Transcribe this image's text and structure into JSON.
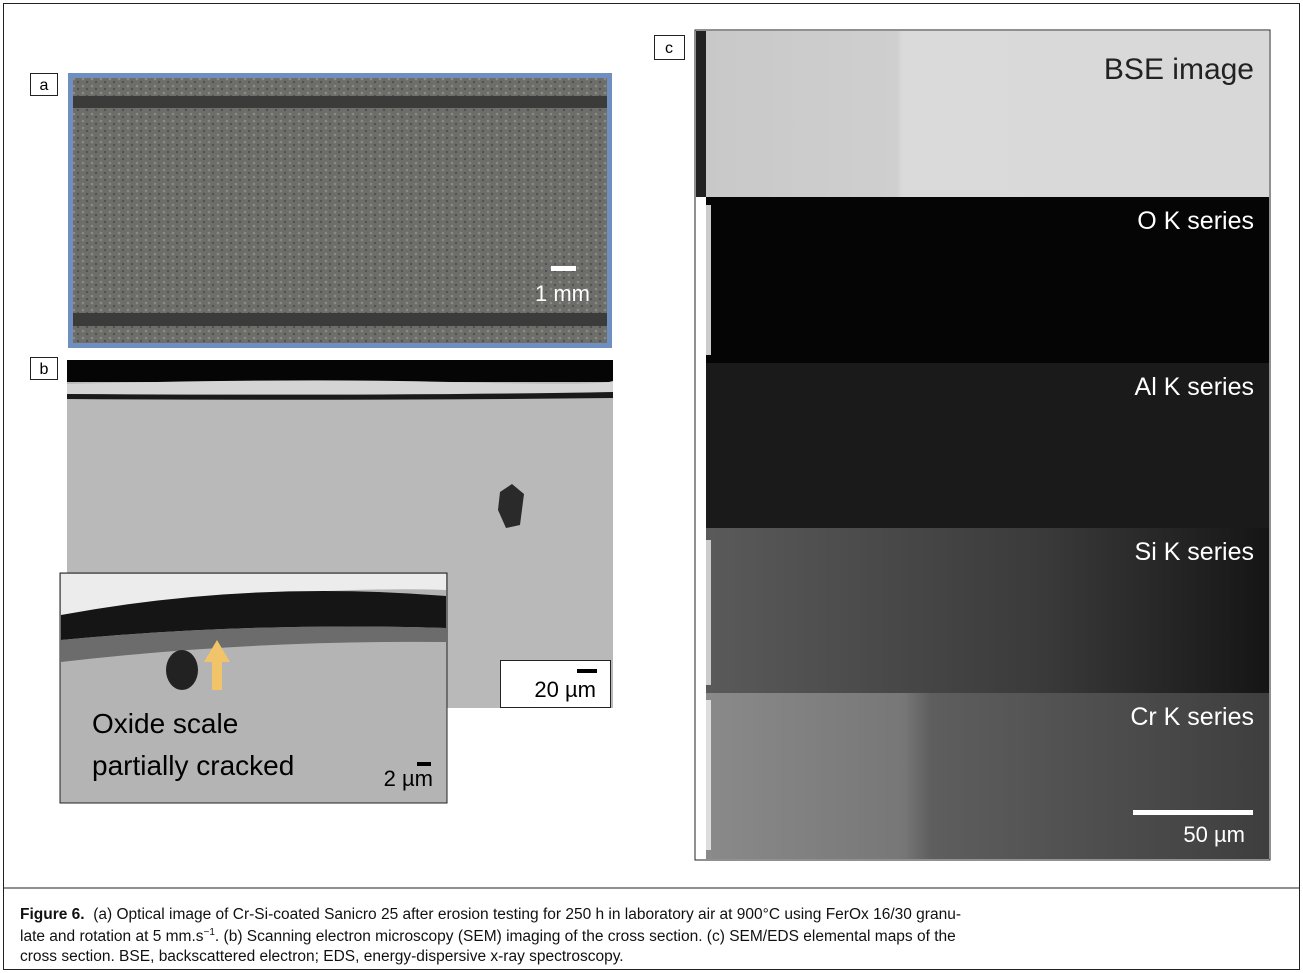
{
  "panels": {
    "a": {
      "label": "a",
      "scale_bar": "1 mm"
    },
    "b": {
      "label": "b",
      "scale_bar": "20 µm",
      "inset": {
        "annotation_lines": [
          "Oxide scale",
          "partially cracked"
        ],
        "scale_bar": "2 µm"
      }
    },
    "c": {
      "label": "c",
      "maps": [
        "BSE image",
        "O K series",
        "Al K series",
        "Si K series",
        "Cr K series"
      ],
      "scale_bar": "50 µm"
    }
  },
  "caption": {
    "label": "Figure 6.",
    "line1": "(a) Optical image of Cr-Si-coated Sanicro 25 after erosion testing for 250 h in laboratory air at 900°C using FerOx 16/30 granu-",
    "line2_before": "late and rotation at 5 mm.s",
    "line2_superscript": "−1",
    "line2_after": ". (b) Scanning electron microscopy (SEM) imaging of the cross section. (c) SEM/EDS elemental maps of the",
    "line3": "cross section. BSE, backscattered electron; EDS, energy-dispersive x-ray spectroscopy."
  }
}
